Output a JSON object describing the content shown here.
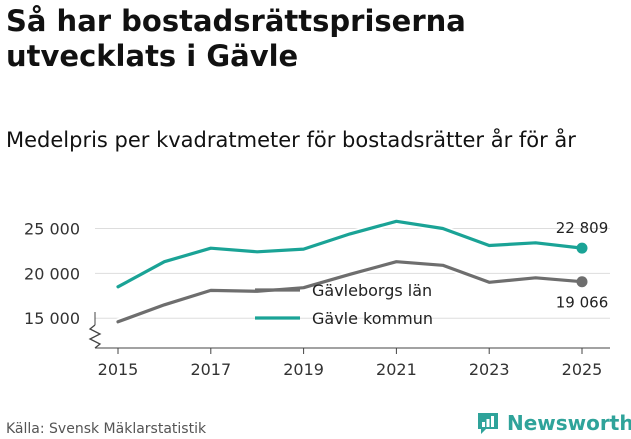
{
  "title": "Så har bostadsrättspriserna utvecklats i Gävle",
  "subtitle": "Medelpris per kvadratmeter för bostadsrätter år för år",
  "source": "Källa: Svensk Mäklarstatistik",
  "brand": "Newsworthy",
  "colors": {
    "kommun": "#1aa396",
    "lan": "#6e6e6e",
    "axis": "#444444",
    "grid": "#dddddd",
    "text": "#111111"
  },
  "chart_data": {
    "type": "line",
    "title": "Medelpris per kvadratmeter för bostadsrätter år för år",
    "xlabel": "",
    "ylabel": "",
    "x": [
      2015,
      2016,
      2017,
      2018,
      2019,
      2020,
      2021,
      2022,
      2023,
      2024,
      2025
    ],
    "x_ticks": [
      "2015",
      "2017",
      "2019",
      "2021",
      "2023",
      "2025"
    ],
    "y_ticks": [
      "15 000",
      "20 000",
      "25 000"
    ],
    "y_tick_values": [
      15000,
      20000,
      25000
    ],
    "ylim": [
      12800,
      26500
    ],
    "axis_break": true,
    "legend_position": "inside-center",
    "series": [
      {
        "name": "Gävleborgs län",
        "color_key": "lan",
        "values": [
          14600,
          16500,
          18100,
          18000,
          18400,
          19900,
          21300,
          20900,
          19000,
          19500,
          19066
        ],
        "end_label": "19 066"
      },
      {
        "name": "Gävle kommun",
        "color_key": "kommun",
        "values": [
          18500,
          21300,
          22800,
          22400,
          22700,
          24400,
          25800,
          25000,
          23100,
          23400,
          22809
        ],
        "end_label": "22 809"
      }
    ]
  }
}
